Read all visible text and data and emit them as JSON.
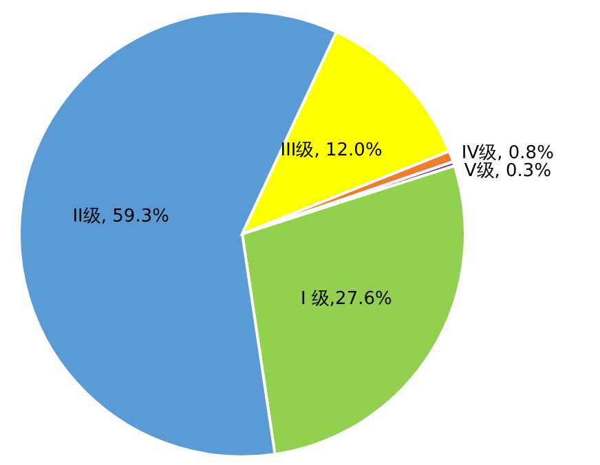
{
  "chart_data": {
    "type": "pie",
    "categories": [
      "I 级",
      "II级",
      "III级",
      "IV级",
      "V级"
    ],
    "values": [
      27.6,
      59.3,
      12.0,
      0.8,
      0.3
    ],
    "value_labels": [
      ",27.6%",
      ", 59.3%",
      ", 12.0%",
      ", 0.8%",
      ", 0.3%"
    ],
    "colors": [
      "#92d050",
      "#5b9bd5",
      "#ffff00",
      "#ed7d31",
      "#7030a0"
    ]
  }
}
